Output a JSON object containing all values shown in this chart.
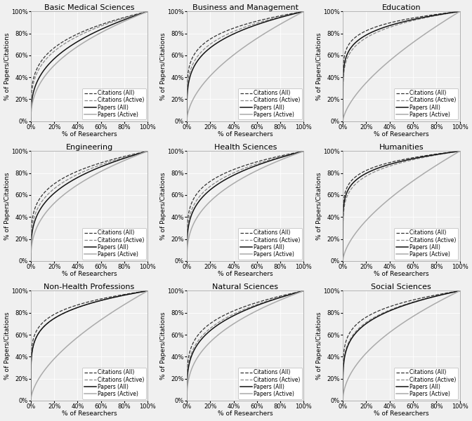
{
  "disciplines": [
    "Basic Medical Sciences",
    "Business and Management",
    "Education",
    "Engineering",
    "Health Sciences",
    "Humanities",
    "Non-Health Professions",
    "Natural Sciences",
    "Social Sciences"
  ],
  "curve_params": {
    "Basic Medical Sciences": {
      "cit_all": 0.25,
      "cit_act": 0.28,
      "pap_all": 0.35,
      "pap_act": 0.42
    },
    "Business and Management": {
      "cit_all": 0.18,
      "cit_act": 0.22,
      "pap_all": 0.25,
      "pap_act": 0.55
    },
    "Education": {
      "cit_all": 0.12,
      "cit_act": 0.17,
      "pap_all": 0.15,
      "pap_act": 0.65
    },
    "Engineering": {
      "cit_all": 0.22,
      "cit_act": 0.26,
      "pap_all": 0.3,
      "pap_act": 0.4
    },
    "Health Sciences": {
      "cit_all": 0.2,
      "cit_act": 0.24,
      "pap_all": 0.27,
      "pap_act": 0.38
    },
    "Humanities": {
      "cit_all": 0.12,
      "cit_act": 0.16,
      "pap_all": 0.14,
      "pap_act": 0.62
    },
    "Non-Health Professions": {
      "cit_all": 0.15,
      "cit_act": 0.18,
      "pap_all": 0.18,
      "pap_act": 0.6
    },
    "Natural Sciences": {
      "cit_all": 0.22,
      "cit_act": 0.26,
      "pap_all": 0.28,
      "pap_act": 0.39
    },
    "Social Sciences": {
      "cit_all": 0.17,
      "cit_act": 0.21,
      "pap_all": 0.22,
      "pap_act": 0.52
    }
  },
  "legend_labels": [
    "Citations (All)",
    "Citations (Active)",
    "Papers (All)",
    "Papers (Active)"
  ],
  "xlabel": "% of Researchers",
  "ylabel": "% of Papers/Citations",
  "xticks": [
    0,
    0.2,
    0.4,
    0.6,
    0.8,
    1.0
  ],
  "yticks": [
    0,
    0.2,
    0.4,
    0.6,
    0.8,
    1.0
  ],
  "ytick_labels": [
    "0%",
    "20%",
    "40%",
    "60%",
    "80%",
    "100%"
  ],
  "xtick_labels": [
    "0%",
    "20%",
    "40%",
    "60%",
    "80%",
    "100%"
  ],
  "background_color": "#f0f0f0",
  "grid_color": "#ffffff",
  "title_fontsize": 8,
  "label_fontsize": 6.5,
  "tick_fontsize": 6,
  "legend_fontsize": 5.5
}
